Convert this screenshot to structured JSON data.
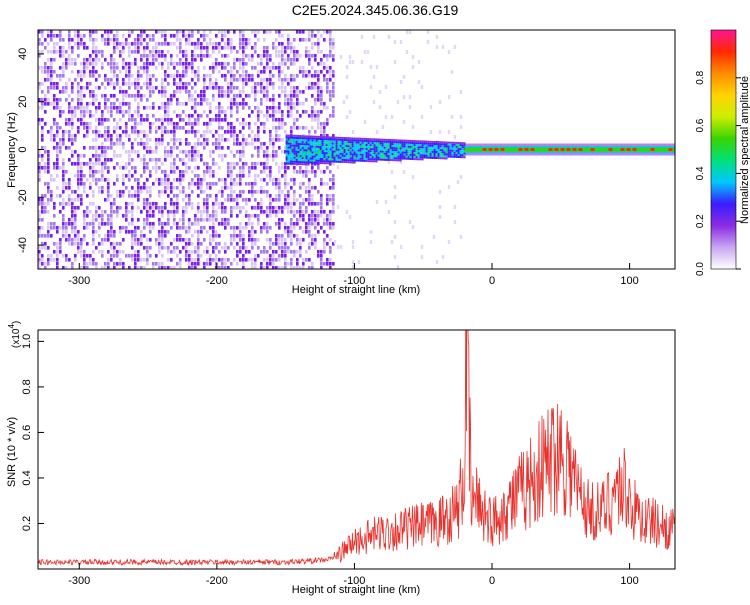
{
  "title": "C2E5.2024.345.06.36.G19",
  "colors": {
    "snr_line": "#e8312c",
    "colorbar_stops": [
      "#ffffff",
      "#c9a6f2",
      "#8a2be2",
      "#3a1cff",
      "#00c8ff",
      "#00e07a",
      "#39d400",
      "#ccee00",
      "#ffd400",
      "#ff8c00",
      "#ff2a00",
      "#ff1493"
    ]
  },
  "chart_data": [
    {
      "type": "heatmap",
      "xlabel": "Height of straight line (km)",
      "ylabel": "Frequency (Hz)",
      "xlim": [
        -330,
        133
      ],
      "ylim": [
        -50,
        50
      ],
      "xticks": [
        -300,
        -200,
        -100,
        0,
        100
      ],
      "yticks": [
        -40,
        -20,
        0,
        20,
        40
      ],
      "colorbar": {
        "label": "Normalized spectral amplitude",
        "range": [
          0,
          1
        ],
        "ticks": [
          "0.0",
          "0.2",
          "0.4",
          "0.6",
          "0.8"
        ]
      },
      "regions": [
        {
          "x": [
            -330,
            -115
          ],
          "y": [
            -50,
            50
          ],
          "amplitude": 0.15
        },
        {
          "x": [
            -150,
            -20
          ],
          "y": [
            -8,
            10
          ],
          "amplitude": 0.45
        },
        {
          "x": [
            -20,
            133
          ],
          "y": [
            -1,
            1
          ],
          "amplitude": 0.9
        }
      ]
    },
    {
      "type": "line",
      "xlabel": "Height of straight line (km)",
      "ylabel": "SNR (10 * v/v)",
      "yscale_label": "(x10",
      "yscale_exp": "4",
      "xlim": [
        -330,
        133
      ],
      "ylim": [
        0,
        1.05
      ],
      "xticks": [
        -300,
        -200,
        -100,
        0,
        100
      ],
      "yticks": [
        0.2,
        0.4,
        0.6,
        0.8,
        1.0
      ],
      "series": [
        {
          "x": [
            -330,
            -250,
            -150,
            -120,
            -112,
            -100,
            -80,
            -60,
            -40,
            -25,
            -20,
            -19,
            -15,
            -10,
            0,
            10,
            20,
            30,
            40,
            48,
            55,
            62,
            70,
            80,
            90,
            97,
            103,
            110,
            120,
            133
          ],
          "y": [
            0.03,
            0.03,
            0.03,
            0.04,
            0.06,
            0.12,
            0.16,
            0.18,
            0.2,
            0.26,
            0.4,
            1.05,
            0.3,
            0.3,
            0.2,
            0.27,
            0.33,
            0.4,
            0.47,
            0.53,
            0.48,
            0.35,
            0.26,
            0.25,
            0.35,
            0.36,
            0.26,
            0.22,
            0.2,
            0.17
          ]
        }
      ]
    }
  ]
}
